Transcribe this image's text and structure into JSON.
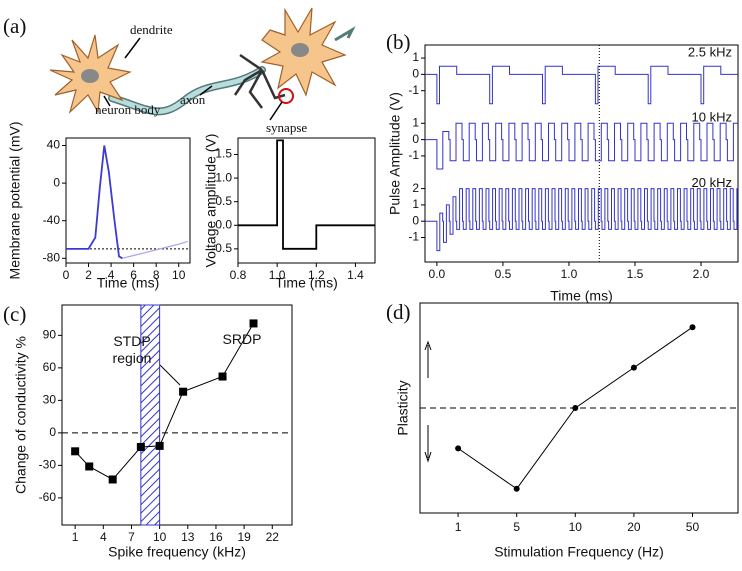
{
  "panel_labels": [
    "(a)",
    "(b)",
    "(c)",
    "(d)"
  ],
  "illustration": {
    "labels": [
      "dendrite",
      "axon",
      "neuron body",
      "synapse"
    ]
  },
  "chart_data": [
    {
      "type": "line",
      "xlabel": "Time (ms)",
      "ylabel": "Membrane potential (mV)",
      "xlim": [
        0,
        11
      ],
      "xticks": [
        0,
        2,
        4,
        6,
        8,
        10
      ],
      "ylim": [
        -85,
        48
      ],
      "yticks": [
        40,
        0,
        -40,
        -80
      ],
      "hline": -70,
      "series": [
        {
          "color": "#3a3ad6",
          "x": [
            0,
            2,
            2.6,
            3.0,
            3.4,
            3.8,
            4.3,
            4.7,
            5.0
          ],
          "values": [
            -70,
            -70,
            -58,
            -5,
            40,
            12,
            -40,
            -78,
            -80
          ]
        },
        {
          "color": "#a4a4f0",
          "x": [
            5.0,
            6,
            7,
            8,
            9,
            10,
            10.8
          ],
          "values": [
            -80,
            -77,
            -74,
            -71,
            -68,
            -65,
            -62
          ]
        }
      ]
    },
    {
      "type": "line",
      "xlabel": "Time (ms)",
      "ylabel": "Voltage amplitude (V)",
      "xlim": [
        0.8,
        1.5
      ],
      "xticks": [
        0.8,
        {
          "value": 1,
          "label": "1.0"
        },
        1.2,
        1.4
      ],
      "ylim": [
        -0.8,
        1.85
      ],
      "yticks": [
        -0.5,
        {
          "value": 0,
          "label": "0.0"
        },
        0.5,
        {
          "value": 1,
          "label": "1.0"
        },
        1.5
      ],
      "series": [
        {
          "color": "#000000",
          "x": [
            0.8,
            1.0,
            1.0,
            1.03,
            1.03,
            1.2,
            1.2,
            1.5
          ],
          "values": [
            0,
            0,
            1.8,
            1.8,
            -0.5,
            -0.5,
            0,
            0
          ]
        }
      ]
    },
    {
      "type": "pulse",
      "xlabel": "Time (ms)",
      "ylabel": "Pulse Amplitude (V)",
      "color": "#3333cc",
      "xlim": [
        -0.09,
        2.28
      ],
      "xticks": [
        {
          "value": 0,
          "label": "0.0"
        },
        0.5,
        {
          "value": 1,
          "label": "1.0"
        },
        1.5,
        {
          "value": 2,
          "label": "2.0"
        }
      ],
      "vline": 1.23,
      "traces": [
        {
          "label": "2.5 kHz",
          "frequency": 2.5,
          "ylim": [
            -2.2,
            1.8
          ],
          "yticks": [
            1,
            0,
            -1
          ],
          "low": -1.8,
          "high": 0.5,
          "start_lows": [],
          "start_highs": [],
          "low_width": 0.02,
          "high_width": 0.13
        },
        {
          "label": "10 kHz",
          "frequency": 10,
          "ylim": [
            -2.2,
            1.8
          ],
          "yticks": [
            1,
            0,
            -1
          ],
          "low": -1.3,
          "high": 1,
          "start_lows": [
            -1.8
          ],
          "start_highs": [
            0.5
          ],
          "low_width": 0.045,
          "high_width": 0.045
        },
        {
          "label": "20 kHz",
          "frequency": 20,
          "ylim": [
            -2.5,
            2.8
          ],
          "yticks": [
            2,
            1,
            0,
            -1
          ],
          "low": -0.5,
          "high": 2,
          "start_lows": [
            -1.8,
            -1.3,
            -0.8
          ],
          "start_highs": [
            0.5,
            1,
            1.5
          ],
          "low_width": 0.022,
          "high_width": 0.022
        }
      ]
    },
    {
      "type": "line-markers",
      "xlabel": "Spike frequency (kHz)",
      "ylabel": "Change of conductivity %",
      "xlim": [
        -0.4,
        24.1
      ],
      "xticks": [
        1,
        4,
        7,
        10,
        13,
        16,
        19,
        22
      ],
      "ylim": [
        -85,
        118
      ],
      "yticks": [
        -60,
        -30,
        0,
        30,
        60,
        90
      ],
      "hline": 0,
      "region": [
        8,
        10
      ],
      "annotations": [
        "STDP region",
        "SRDP"
      ],
      "x": [
        1,
        2.5,
        5,
        8,
        10,
        12.5,
        16.7,
        20
      ],
      "values": [
        -17,
        -31,
        -43,
        -13,
        -12,
        38,
        52,
        101
      ],
      "color": "#000000"
    },
    {
      "type": "category-line",
      "xlabel": "Stimulation Frequency (Hz)",
      "ylabel": "Plasticity",
      "categories": [
        "1",
        "5",
        "10",
        "20",
        "50"
      ],
      "values": [
        -1,
        -2,
        0,
        1,
        2
      ],
      "ylim": [
        -2.6,
        2.6
      ],
      "hline": 0,
      "color": "#000000"
    }
  ]
}
